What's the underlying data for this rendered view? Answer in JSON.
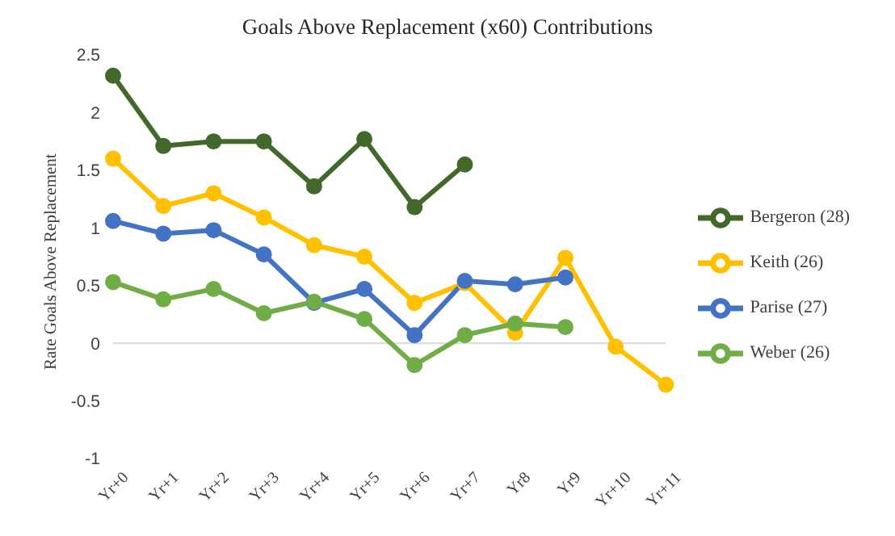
{
  "chart_data": {
    "type": "line",
    "title": "Goals Above Replacement (x60) Contributions",
    "ylabel": "Rate Goals Above Replacement",
    "categories": [
      "Yr+0",
      "Yr+1",
      "Yr+2",
      "Yr+3",
      "Yr+4",
      "Yr+5",
      "Yr+6",
      "Yr+7",
      "Yr8",
      "Yr9",
      "Yr+10",
      "Yr+11"
    ],
    "series": [
      {
        "name": "Bergeron (28)",
        "color": "#43682b",
        "values": [
          2.32,
          1.71,
          1.75,
          1.75,
          1.36,
          1.77,
          1.18,
          1.55,
          null,
          null,
          null,
          null
        ]
      },
      {
        "name": "Keith (26)",
        "color": "#ffc000",
        "values": [
          1.6,
          1.19,
          1.3,
          1.09,
          0.85,
          0.75,
          0.35,
          0.52,
          0.09,
          0.74,
          -0.03,
          -0.36
        ]
      },
      {
        "name": "Parise (27)",
        "color": "#4472c4",
        "values": [
          1.06,
          0.95,
          0.98,
          0.77,
          0.35,
          0.47,
          0.07,
          0.54,
          0.51,
          0.57,
          null,
          null
        ]
      },
      {
        "name": "Weber (26)",
        "color": "#70ad47",
        "values": [
          0.53,
          0.38,
          0.47,
          0.26,
          0.36,
          0.21,
          -0.19,
          0.07,
          0.17,
          0.14,
          null,
          null
        ]
      }
    ],
    "ylim": [
      -1,
      2.5
    ],
    "yticks": [
      -1,
      -0.5,
      0,
      0.5,
      1,
      1.5,
      2,
      2.5
    ],
    "ref_lines": [
      {
        "axis": "y",
        "value": 0,
        "color": "#d9d9d9"
      }
    ],
    "grid": false,
    "legend": "right",
    "marker": "circle",
    "line_style": "solid"
  }
}
